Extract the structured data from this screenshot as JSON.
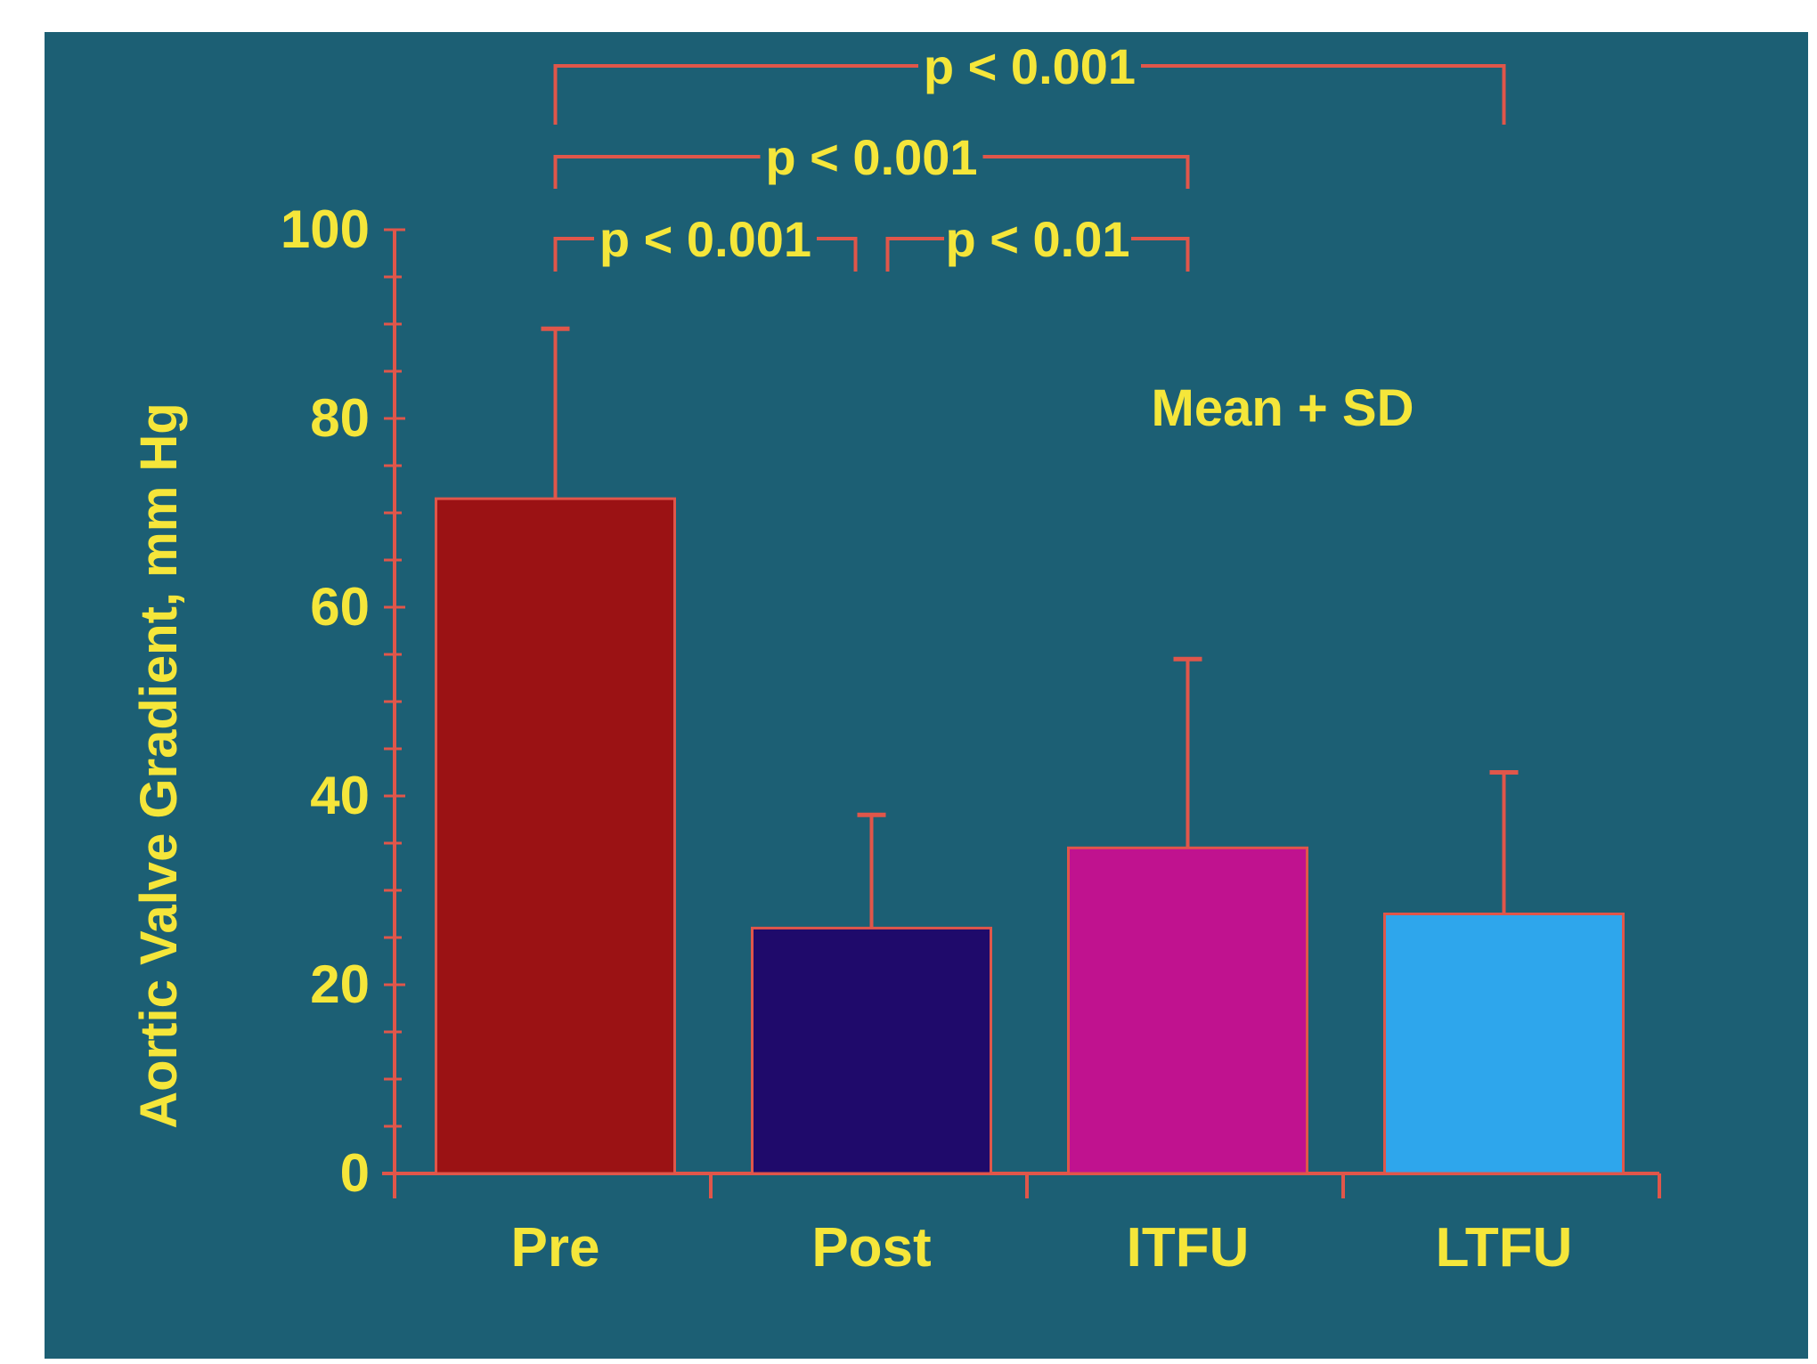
{
  "chart_data": {
    "type": "bar",
    "categories": [
      "Pre",
      "Post",
      "ITFU",
      "LTFU"
    ],
    "values": [
      71.5,
      26,
      34.5,
      27.5
    ],
    "errors": [
      18,
      12,
      20,
      15
    ],
    "bar_colors": [
      "#9b1214",
      "#1f0a6b",
      "#c0128f",
      "#2ea6ec"
    ],
    "ylabel": "Aortic Valve Gradient, mm Hg",
    "ylim": [
      0,
      100
    ],
    "yticks": [
      0,
      20,
      40,
      60,
      80,
      100
    ],
    "annotation": "Mean + SD",
    "significance": [
      {
        "from": 0,
        "to": 3,
        "label": "p < 0.001"
      },
      {
        "from": 0,
        "to": 2,
        "label": "p < 0.001"
      },
      {
        "from": 0,
        "to": 1,
        "label": "p < 0.001"
      },
      {
        "from": 1,
        "to": 2,
        "label": "p < 0.01"
      }
    ],
    "grid": false,
    "legend": "none"
  },
  "colors": {
    "background": "#1c5f74",
    "axis": "#e0564a",
    "text": "#f5e63a"
  }
}
